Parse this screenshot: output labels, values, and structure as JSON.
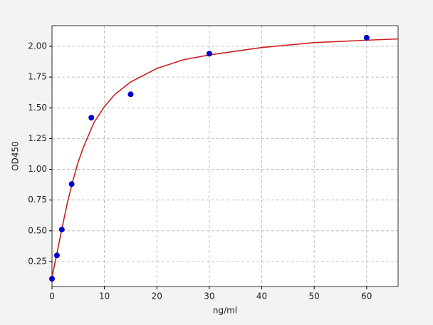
{
  "chart_data": {
    "type": "scatter",
    "xlabel": "ng/ml",
    "ylabel": "OD450",
    "xlim": [
      0,
      66
    ],
    "ylim": [
      0.047,
      2.168
    ],
    "xticks": [
      0,
      10,
      20,
      30,
      40,
      50,
      60
    ],
    "yticks": [
      0.25,
      {
        "value": 0.5,
        "label": "0.50"
      },
      0.75,
      {
        "value": 1,
        "label": "1.00"
      },
      1.25,
      {
        "value": 1.5,
        "label": "1.50"
      },
      1.75,
      {
        "value": 2,
        "label": "2.00"
      }
    ],
    "grid": true,
    "series": [
      {
        "style": "points",
        "color": "#0000cc",
        "x": [
          0,
          0.94,
          1.88,
          3.75,
          7.5,
          15,
          30,
          60
        ],
        "values": [
          0.11,
          0.3,
          0.51,
          0.88,
          1.42,
          1.61,
          1.94,
          2.07
        ]
      },
      {
        "style": "line",
        "color": "#cc1f1f",
        "x": [
          0,
          1,
          2,
          3,
          4,
          5,
          6,
          8,
          10,
          12,
          15,
          20,
          25,
          30,
          40,
          50,
          60,
          66
        ],
        "values": [
          0.12,
          0.33,
          0.54,
          0.74,
          0.91,
          1.06,
          1.18,
          1.38,
          1.51,
          1.61,
          1.71,
          1.82,
          1.89,
          1.93,
          1.99,
          2.03,
          2.05,
          2.06
        ]
      }
    ]
  }
}
